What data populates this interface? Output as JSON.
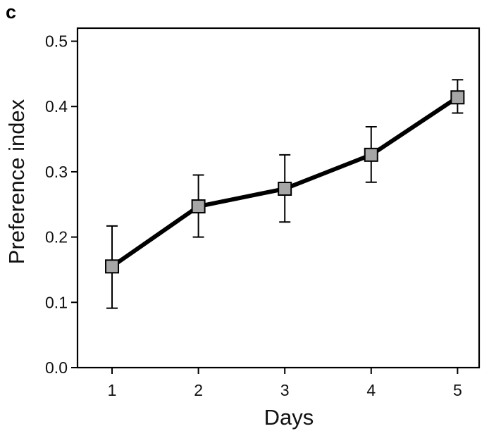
{
  "panel_label": "c",
  "chart_data": {
    "type": "line",
    "title": "",
    "xlabel": "Days",
    "ylabel": "Preference index",
    "x": [
      1,
      2,
      3,
      4,
      5
    ],
    "x_tick_labels": [
      "1",
      "2",
      "3",
      "4",
      "5"
    ],
    "xlim": [
      0.6,
      5.25
    ],
    "ylim": [
      0.0,
      0.52
    ],
    "y_ticks": [
      0.0,
      0.1,
      0.2,
      0.3,
      0.4,
      0.5
    ],
    "y_tick_labels": [
      "0.0",
      "0.1",
      "0.2",
      "0.3",
      "0.4",
      "0.5"
    ],
    "grid": false,
    "series": [
      {
        "values": [
          0.155,
          0.247,
          0.274,
          0.326,
          0.414
        ],
        "error_upper": [
          0.217,
          0.295,
          0.326,
          0.369,
          0.441
        ],
        "error_lower": [
          0.091,
          0.2,
          0.223,
          0.284,
          0.39
        ],
        "line_color": "#000000",
        "marker": "square",
        "marker_fill": "#a6a6a6",
        "marker_edge": "#000000"
      }
    ]
  }
}
